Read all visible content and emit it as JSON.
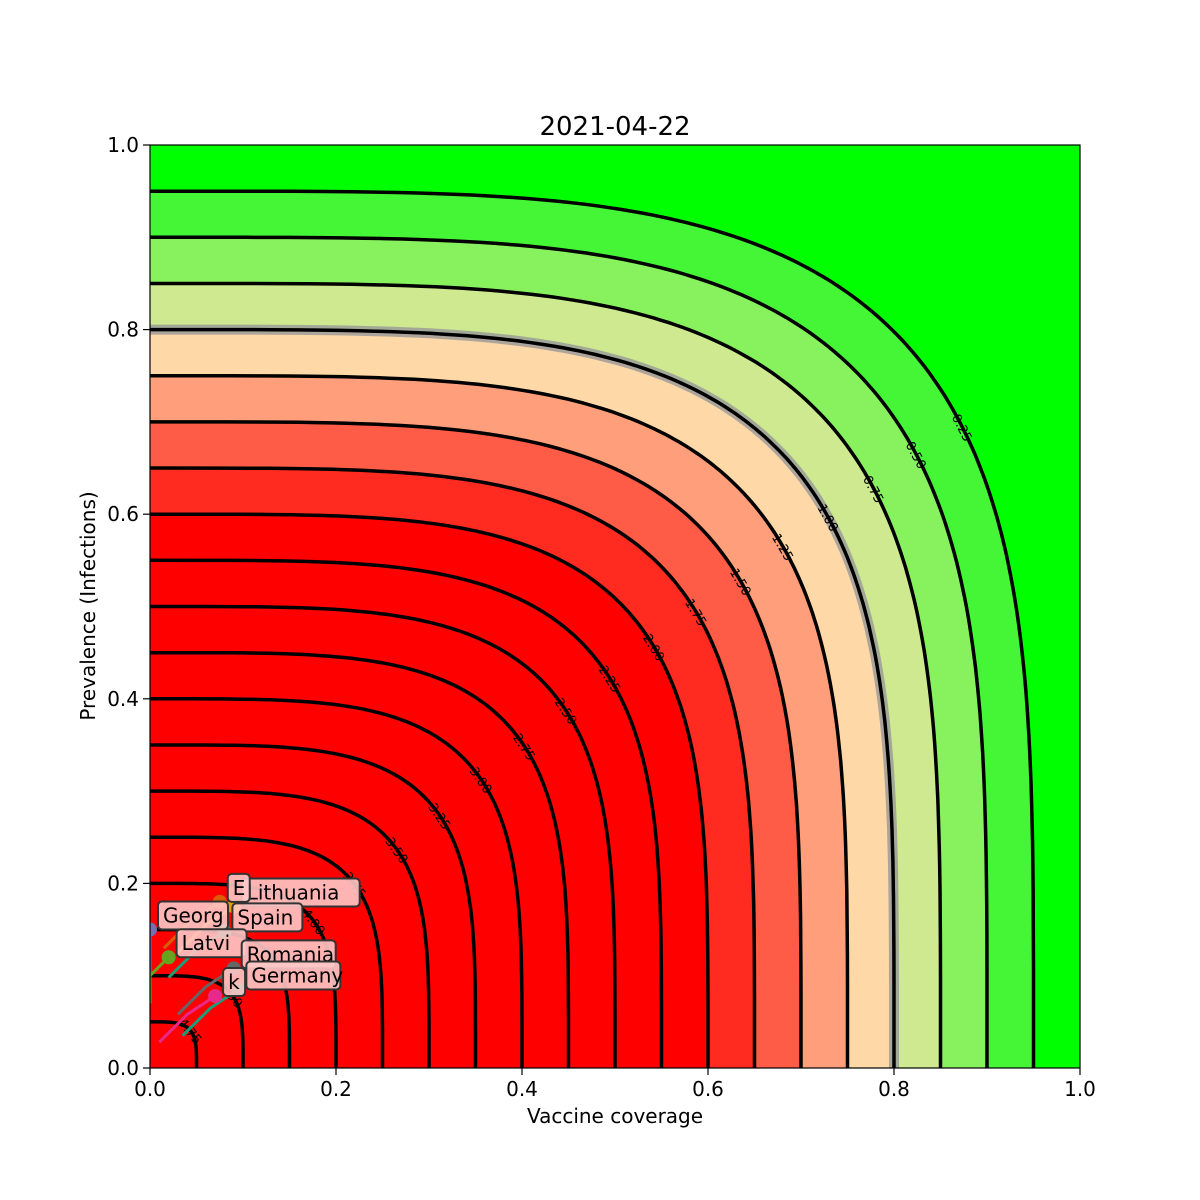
{
  "chart_data": {
    "type": "contour",
    "title": "2021-04-22",
    "xlabel": "Vaccine coverage",
    "ylabel": "Prevalence (Infections)",
    "xlim": [
      0.0,
      1.0
    ],
    "ylim": [
      0.0,
      1.0
    ],
    "x_ticks": [
      "0.0",
      "0.2",
      "0.4",
      "0.6",
      "0.8",
      "1.0"
    ],
    "y_ticks": [
      "0.0",
      "0.2",
      "0.4",
      "0.6",
      "0.8",
      "1.0"
    ],
    "grid": false,
    "contour_levels": [
      {
        "value": 0.25,
        "label": "0.25"
      },
      {
        "value": 0.5,
        "label": "0.50"
      },
      {
        "value": 0.75,
        "label": "0.75"
      },
      {
        "value": 1.0,
        "label": "1.00"
      },
      {
        "value": 1.25,
        "label": "1.25"
      },
      {
        "value": 1.5,
        "label": "1.50"
      },
      {
        "value": 1.75,
        "label": "1.75"
      },
      {
        "value": 2.0,
        "label": "2.00"
      },
      {
        "value": 2.25,
        "label": "2.25"
      },
      {
        "value": 2.5,
        "label": "2.50"
      },
      {
        "value": 2.75,
        "label": "2.75"
      },
      {
        "value": 3.0,
        "label": "3.00"
      },
      {
        "value": 3.25,
        "label": "3.25"
      },
      {
        "value": 3.5,
        "label": "3.50"
      },
      {
        "value": 3.75,
        "label": "3.75"
      },
      {
        "value": 4.0,
        "label": "4.00"
      },
      {
        "value": 4.25,
        "label": "4.25"
      },
      {
        "value": 4.5,
        "label": "4.50"
      },
      {
        "value": 4.75,
        "label": "4.75"
      },
      {
        "value": 5.0,
        "label": "5.00"
      }
    ],
    "fill_colors": [
      "#00ff00",
      "#44f636",
      "#88f25e",
      "#cee990",
      "#ffd8a8",
      "#ff9e7a",
      "#ff5c48",
      "#ff2a20",
      "#ff0000"
    ],
    "countries": [
      {
        "name": "Lithuania",
        "x": 0.09,
        "y": 0.175,
        "color": "#e5a000"
      },
      {
        "name": "Estonia",
        "label": "E",
        "x": 0.075,
        "y": 0.18,
        "color": "#d95f02"
      },
      {
        "name": "Spain",
        "x": 0.08,
        "y": 0.148,
        "color": "#1b9e77"
      },
      {
        "name": "Georgia",
        "label": "Georg",
        "x": 0.0,
        "y": 0.15,
        "color": "#7570b3"
      },
      {
        "name": "Latvia",
        "label": "Latvi",
        "x": 0.02,
        "y": 0.12,
        "color": "#66a61e"
      },
      {
        "name": "Romania",
        "x": 0.09,
        "y": 0.108,
        "color": "#666666"
      },
      {
        "name": "Germany",
        "x": 0.095,
        "y": 0.085,
        "color": "#1b9e77"
      },
      {
        "name": "Slovakia",
        "label": "k",
        "x": 0.07,
        "y": 0.078,
        "color": "#e7298a"
      }
    ]
  }
}
